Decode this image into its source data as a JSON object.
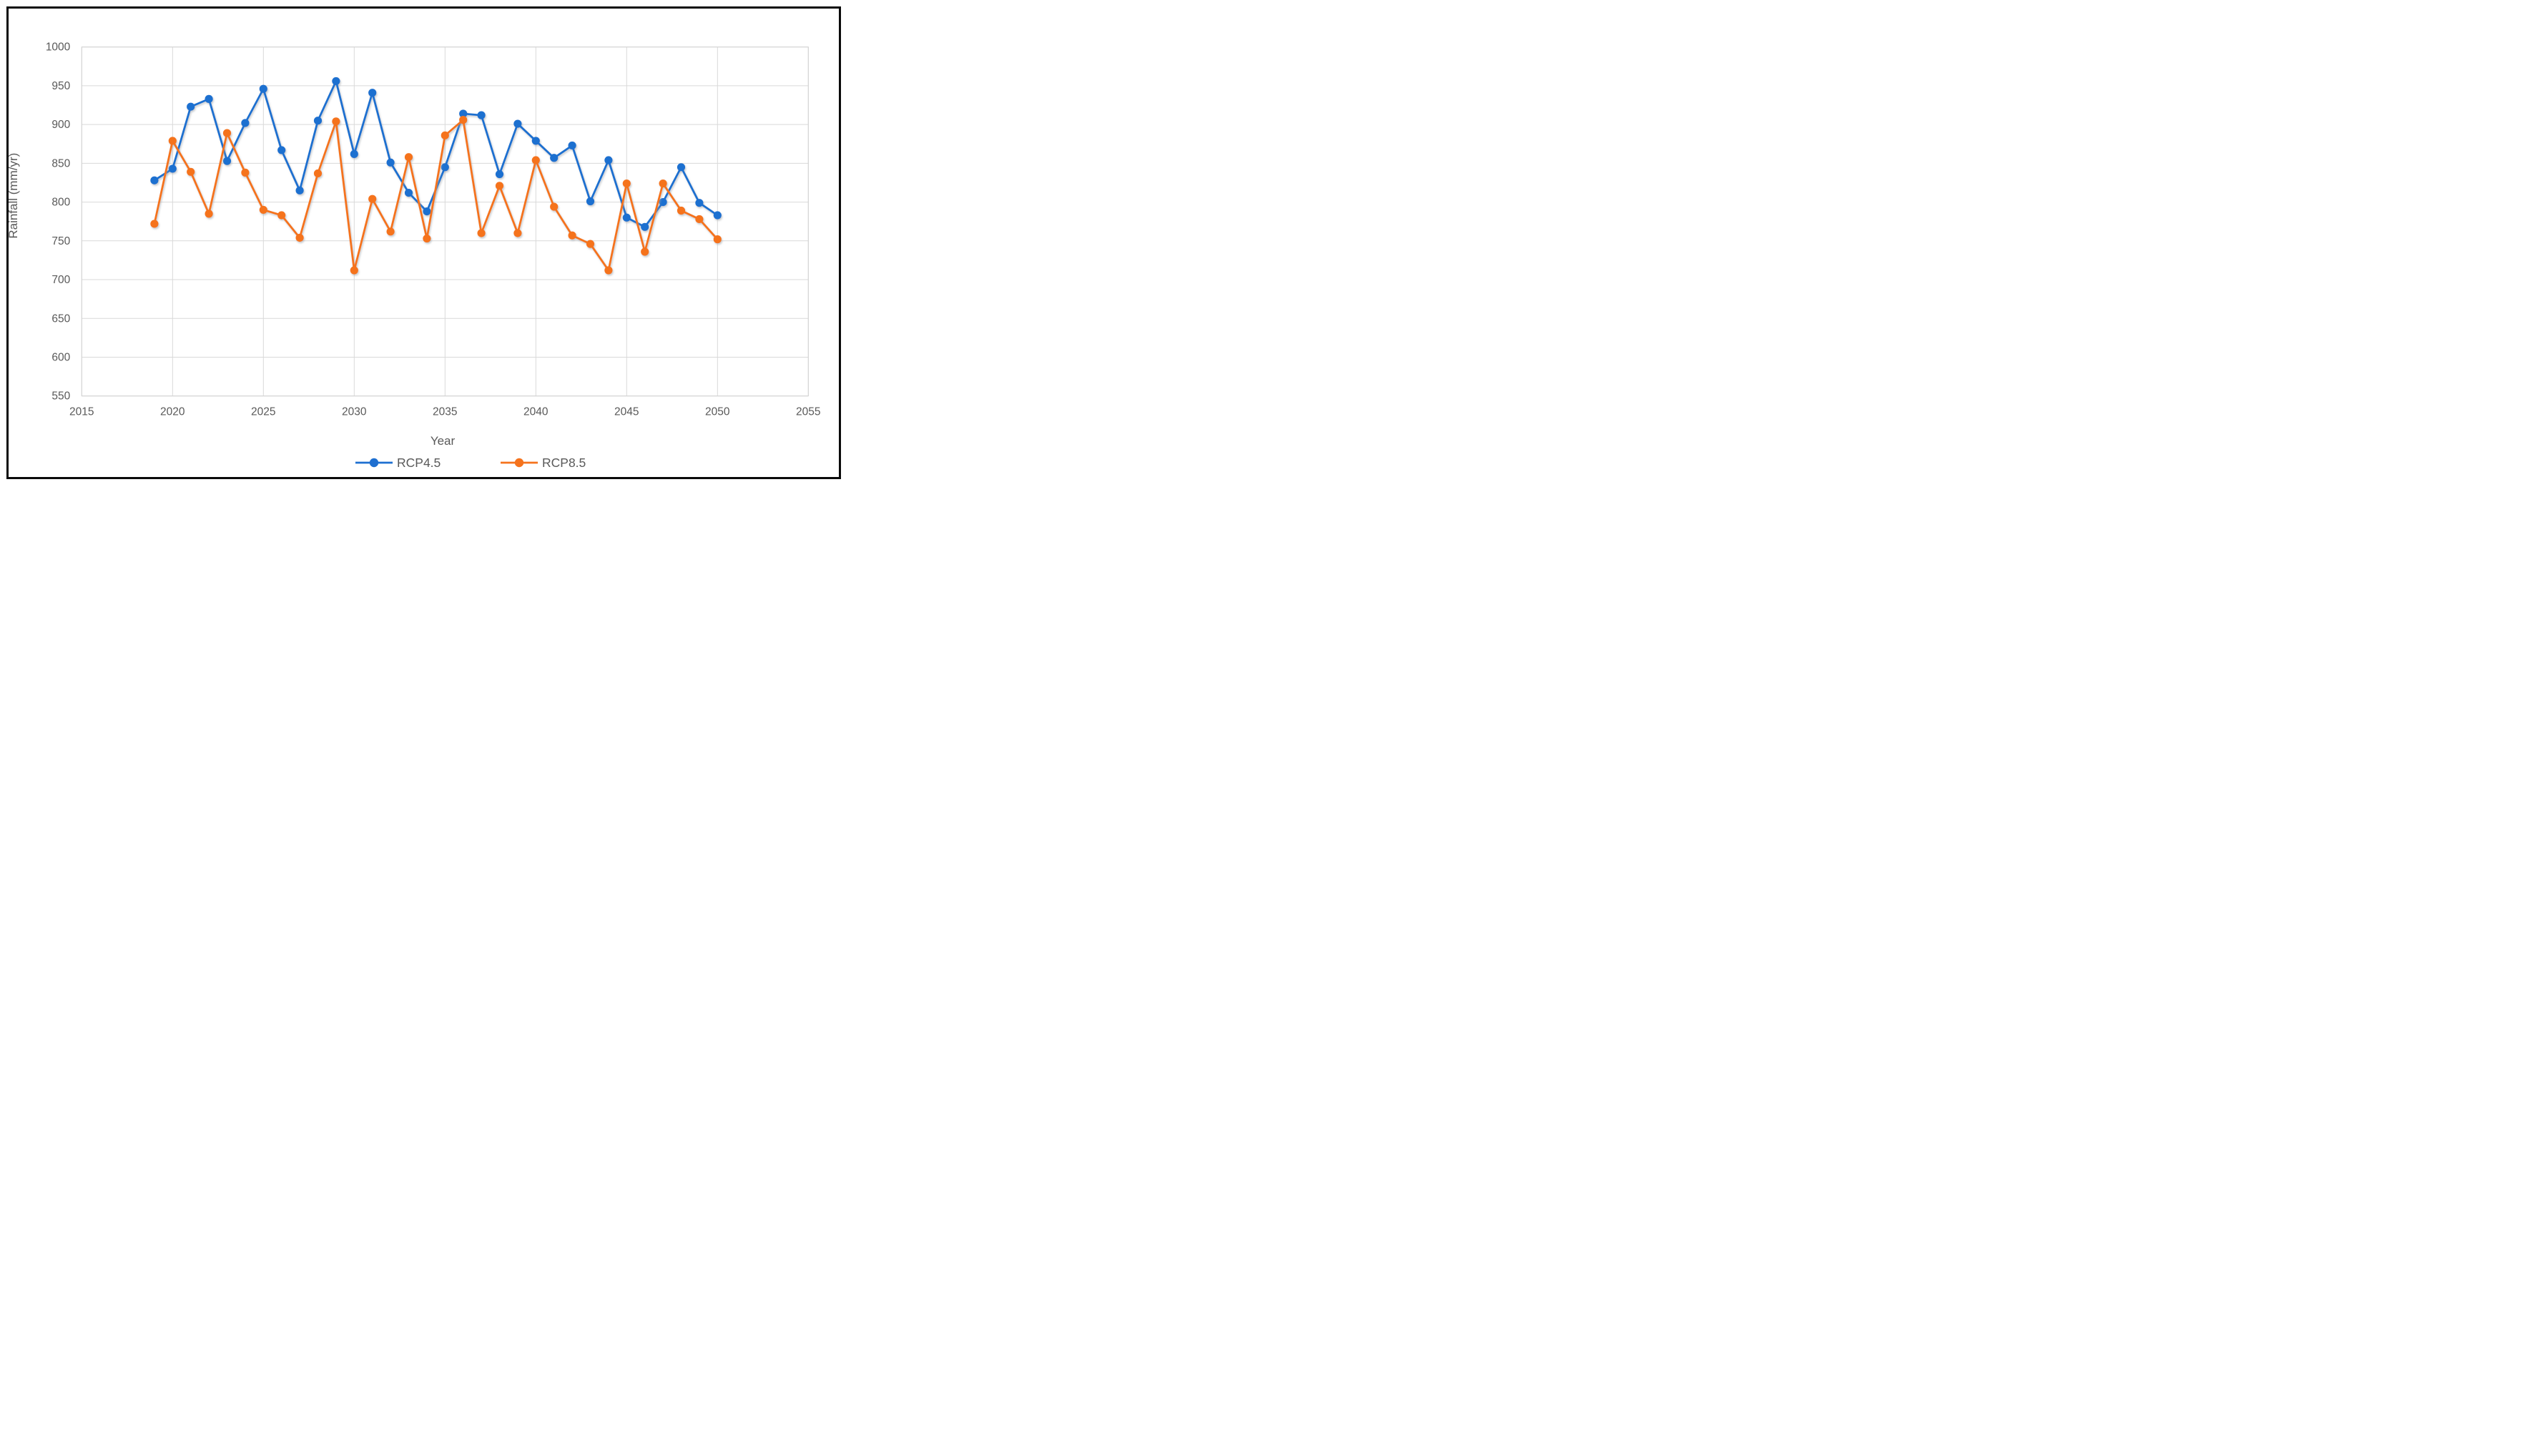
{
  "frame": {
    "background": "#ffffff",
    "border_color": "#0a0a0a"
  },
  "chart_data": {
    "type": "line",
    "title": "",
    "xlabel": "Year",
    "ylabel": "Rainfall (mm/yr)",
    "xlim": [
      2015,
      2055
    ],
    "ylim": [
      550,
      1000
    ],
    "x_ticks": [
      2015,
      2020,
      2025,
      2030,
      2035,
      2040,
      2045,
      2050,
      2055
    ],
    "y_ticks": [
      1000,
      950,
      900,
      850,
      800,
      750,
      700,
      650,
      600,
      550
    ],
    "grid": true,
    "grid_color": "#d9d9d9",
    "plot_border_color": "#d2d2d2",
    "tick_label_color": "#595959",
    "axis_title_color": "#595959",
    "legend_position": "bottom-center",
    "x": [
      2019,
      2020,
      2021,
      2022,
      2023,
      2024,
      2025,
      2026,
      2027,
      2028,
      2029,
      2030,
      2031,
      2032,
      2033,
      2034,
      2035,
      2036,
      2037,
      2038,
      2039,
      2040,
      2041,
      2042,
      2043,
      2044,
      2045,
      2046,
      2047,
      2048,
      2049,
      2050
    ],
    "series": [
      {
        "name": "RCP4.5",
        "color": "#1e6fd0",
        "values": [
          828,
          843,
          923,
          933,
          853,
          902,
          946,
          867,
          815,
          905,
          956,
          862,
          941,
          851,
          812,
          788,
          845,
          914,
          912,
          836,
          901,
          879,
          857,
          873,
          801,
          854,
          780,
          768,
          800,
          845,
          799,
          783
        ]
      },
      {
        "name": "RCP8.5",
        "color": "#f5731d",
        "values": [
          772,
          879,
          839,
          785,
          889,
          838,
          790,
          783,
          754,
          837,
          904,
          712,
          804,
          762,
          858,
          753,
          886,
          906,
          760,
          821,
          760,
          854,
          794,
          757,
          746,
          712,
          824,
          736,
          824,
          789,
          778,
          752
        ]
      }
    ]
  }
}
